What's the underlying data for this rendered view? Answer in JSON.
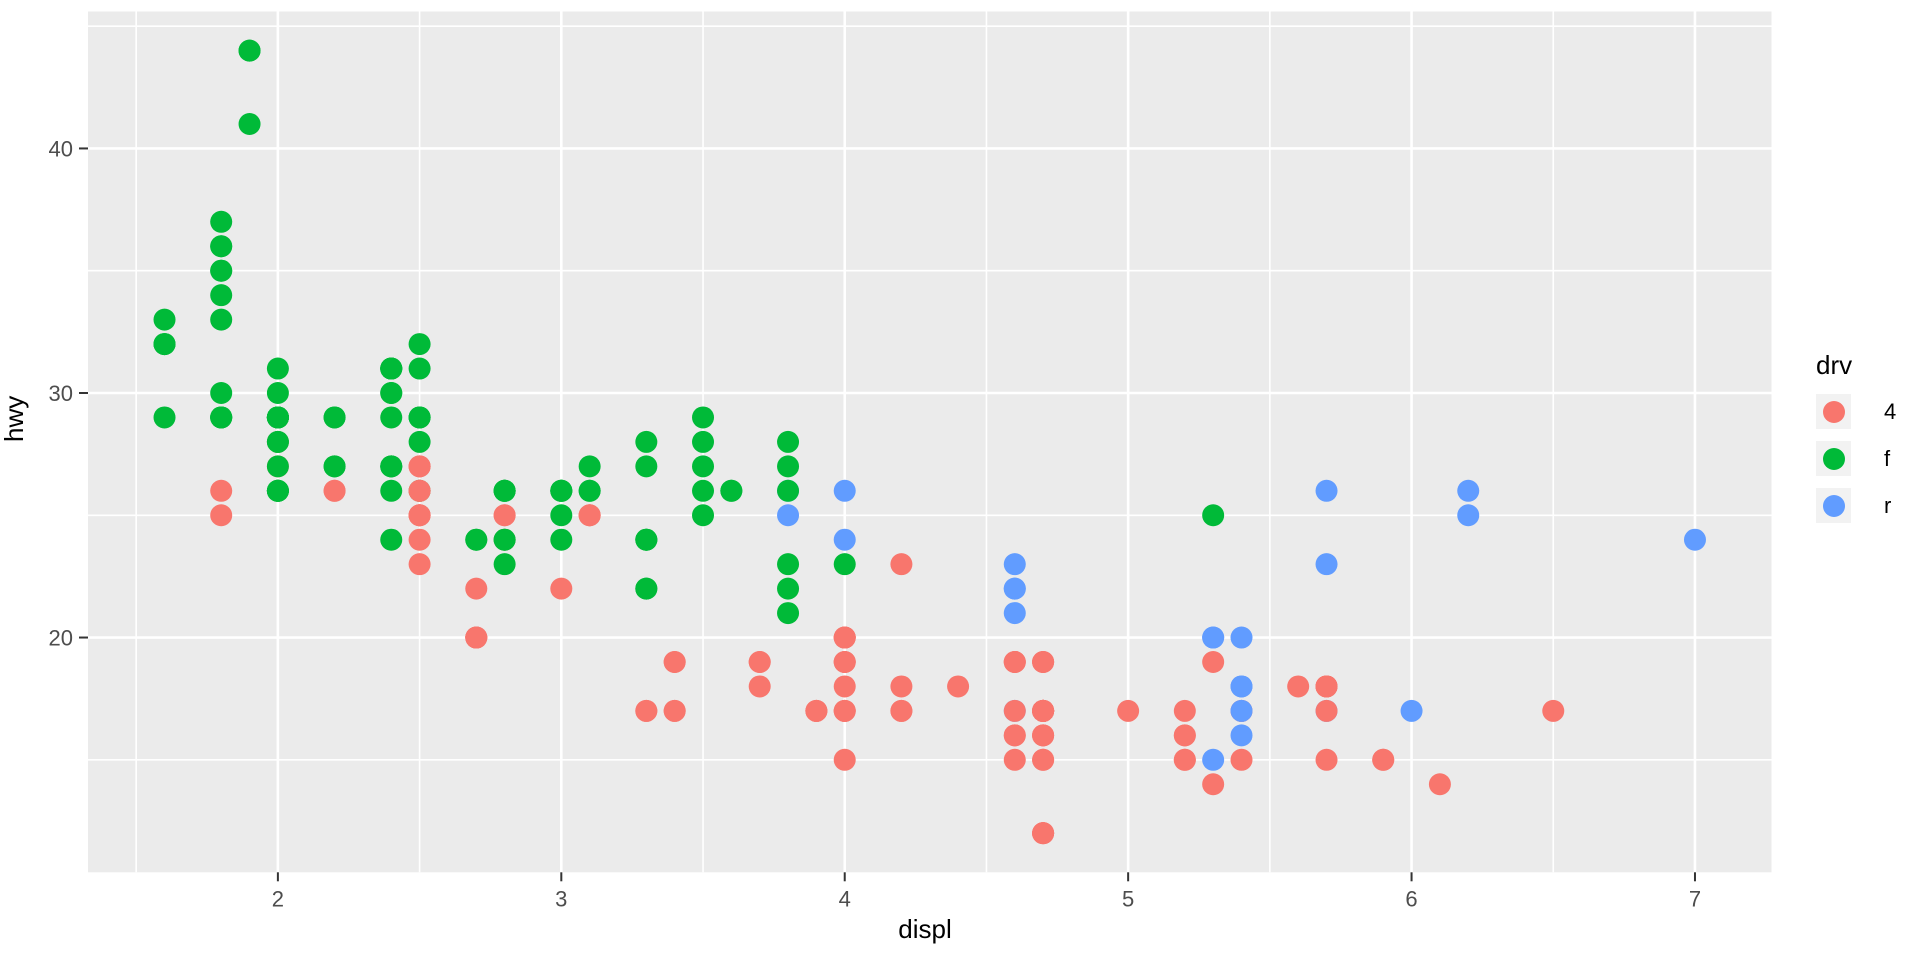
{
  "chart_data": {
    "type": "scatter",
    "title": "",
    "xlabel": "displ",
    "ylabel": "hwy",
    "xlim": [
      1.33,
      7.27
    ],
    "ylim": [
      10.4,
      45.6
    ],
    "x_ticks": [
      2,
      3,
      4,
      5,
      6,
      7
    ],
    "y_ticks": [
      20,
      30,
      40
    ],
    "x_minor_gridlines": [
      1.5,
      2.5,
      3.5,
      4.5,
      5.5,
      6.5
    ],
    "y_minor_gridlines": [
      15,
      25,
      35,
      45
    ],
    "grid": true,
    "panel_bg": "#EBEBEB",
    "gridline_color": "#FFFFFF",
    "tick_mark_color": "#333333",
    "tick_label_color": "#4D4D4D",
    "point_radius": 11,
    "legend": {
      "title": "drv",
      "position": "right",
      "key_bg": "#F2F2F2",
      "entries": [
        {
          "label": "4",
          "color": "#F8766D"
        },
        {
          "label": "f",
          "color": "#00BA38"
        },
        {
          "label": "r",
          "color": "#619CFF"
        }
      ]
    },
    "points": [
      [
        1.8,
        29,
        "f"
      ],
      [
        1.8,
        29,
        "f"
      ],
      [
        2,
        31,
        "f"
      ],
      [
        2,
        30,
        "f"
      ],
      [
        2.8,
        26,
        "f"
      ],
      [
        2.8,
        26,
        "f"
      ],
      [
        3.1,
        27,
        "f"
      ],
      [
        1.8,
        26,
        "4"
      ],
      [
        1.8,
        25,
        "4"
      ],
      [
        2,
        28,
        "4"
      ],
      [
        2,
        27,
        "4"
      ],
      [
        2.8,
        25,
        "4"
      ],
      [
        2.8,
        25,
        "4"
      ],
      [
        3.1,
        25,
        "4"
      ],
      [
        3.1,
        25,
        "4"
      ],
      [
        2.8,
        24,
        "4"
      ],
      [
        3.1,
        25,
        "4"
      ],
      [
        4.2,
        23,
        "4"
      ],
      [
        5.3,
        20,
        "r"
      ],
      [
        5.3,
        15,
        "r"
      ],
      [
        5.3,
        20,
        "r"
      ],
      [
        5.7,
        17,
        "r"
      ],
      [
        6,
        17,
        "r"
      ],
      [
        5.7,
        26,
        "r"
      ],
      [
        5.7,
        23,
        "r"
      ],
      [
        6.2,
        26,
        "r"
      ],
      [
        6.2,
        25,
        "r"
      ],
      [
        7,
        24,
        "r"
      ],
      [
        5.3,
        14,
        "4"
      ],
      [
        5.3,
        19,
        "4"
      ],
      [
        5.7,
        15,
        "4"
      ],
      [
        6.5,
        17,
        "4"
      ],
      [
        2.4,
        27,
        "f"
      ],
      [
        2.4,
        30,
        "f"
      ],
      [
        3.1,
        26,
        "f"
      ],
      [
        3.5,
        29,
        "f"
      ],
      [
        3.6,
        26,
        "f"
      ],
      [
        2.4,
        24,
        "f"
      ],
      [
        3,
        24,
        "f"
      ],
      [
        3.3,
        22,
        "f"
      ],
      [
        3.3,
        22,
        "f"
      ],
      [
        3.3,
        24,
        "f"
      ],
      [
        3.3,
        24,
        "f"
      ],
      [
        3.3,
        24,
        "f"
      ],
      [
        3.8,
        22,
        "f"
      ],
      [
        3.8,
        21,
        "f"
      ],
      [
        3.8,
        23,
        "f"
      ],
      [
        4,
        23,
        "f"
      ],
      [
        3.7,
        19,
        "4"
      ],
      [
        3.7,
        18,
        "4"
      ],
      [
        3.9,
        17,
        "4"
      ],
      [
        3.9,
        17,
        "4"
      ],
      [
        4.7,
        19,
        "4"
      ],
      [
        4.7,
        19,
        "4"
      ],
      [
        4.7,
        12,
        "4"
      ],
      [
        5.2,
        17,
        "4"
      ],
      [
        5.2,
        15,
        "4"
      ],
      [
        3.9,
        17,
        "4"
      ],
      [
        4.7,
        17,
        "4"
      ],
      [
        4.7,
        12,
        "4"
      ],
      [
        4.7,
        17,
        "4"
      ],
      [
        5.2,
        16,
        "4"
      ],
      [
        5.7,
        18,
        "4"
      ],
      [
        5.9,
        15,
        "4"
      ],
      [
        4.7,
        16,
        "4"
      ],
      [
        4.7,
        12,
        "4"
      ],
      [
        4.7,
        17,
        "4"
      ],
      [
        4.7,
        17,
        "4"
      ],
      [
        4.7,
        16,
        "4"
      ],
      [
        4.7,
        17,
        "4"
      ],
      [
        5.2,
        15,
        "4"
      ],
      [
        5.2,
        16,
        "4"
      ],
      [
        5.7,
        17,
        "4"
      ],
      [
        5.9,
        15,
        "4"
      ],
      [
        4.6,
        17,
        "r"
      ],
      [
        5.4,
        17,
        "r"
      ],
      [
        5.4,
        18,
        "r"
      ],
      [
        4,
        17,
        "4"
      ],
      [
        4,
        19,
        "4"
      ],
      [
        4,
        17,
        "4"
      ],
      [
        4,
        19,
        "4"
      ],
      [
        4.6,
        19,
        "4"
      ],
      [
        4.6,
        19,
        "4"
      ],
      [
        4.2,
        17,
        "4"
      ],
      [
        4.2,
        17,
        "4"
      ],
      [
        4.6,
        16,
        "4"
      ],
      [
        4.6,
        16,
        "4"
      ],
      [
        4.6,
        17,
        "4"
      ],
      [
        5.4,
        15,
        "4"
      ],
      [
        5.4,
        17,
        "4"
      ],
      [
        3.8,
        26,
        "r"
      ],
      [
        3.8,
        25,
        "r"
      ],
      [
        4,
        26,
        "r"
      ],
      [
        4,
        24,
        "r"
      ],
      [
        4.6,
        21,
        "r"
      ],
      [
        4.6,
        22,
        "r"
      ],
      [
        4.6,
        23,
        "r"
      ],
      [
        4.6,
        22,
        "r"
      ],
      [
        5.4,
        20,
        "r"
      ],
      [
        1.6,
        33,
        "f"
      ],
      [
        1.6,
        32,
        "f"
      ],
      [
        1.6,
        32,
        "f"
      ],
      [
        1.6,
        29,
        "f"
      ],
      [
        1.6,
        32,
        "f"
      ],
      [
        1.8,
        34,
        "f"
      ],
      [
        1.8,
        36,
        "f"
      ],
      [
        1.8,
        36,
        "f"
      ],
      [
        2,
        29,
        "f"
      ],
      [
        2.4,
        26,
        "f"
      ],
      [
        2.4,
        27,
        "f"
      ],
      [
        2.4,
        30,
        "f"
      ],
      [
        2.4,
        31,
        "f"
      ],
      [
        2.5,
        26,
        "f"
      ],
      [
        2.5,
        26,
        "f"
      ],
      [
        3.3,
        28,
        "f"
      ],
      [
        2,
        26,
        "f"
      ],
      [
        2,
        29,
        "f"
      ],
      [
        2,
        28,
        "f"
      ],
      [
        2,
        27,
        "f"
      ],
      [
        2,
        26,
        "f"
      ],
      [
        2.7,
        24,
        "f"
      ],
      [
        2.7,
        24,
        "f"
      ],
      [
        3,
        22,
        "4"
      ],
      [
        3.7,
        19,
        "4"
      ],
      [
        4,
        20,
        "4"
      ],
      [
        4.7,
        17,
        "4"
      ],
      [
        4.7,
        12,
        "4"
      ],
      [
        4.7,
        19,
        "4"
      ],
      [
        5.7,
        18,
        "4"
      ],
      [
        6.1,
        14,
        "4"
      ],
      [
        4,
        15,
        "4"
      ],
      [
        4.2,
        18,
        "4"
      ],
      [
        4.4,
        18,
        "4"
      ],
      [
        4.6,
        15,
        "4"
      ],
      [
        5.4,
        17,
        "r"
      ],
      [
        5.4,
        16,
        "r"
      ],
      [
        5.4,
        18,
        "r"
      ],
      [
        4,
        17,
        "4"
      ],
      [
        4,
        19,
        "4"
      ],
      [
        4.6,
        19,
        "4"
      ],
      [
        5,
        17,
        "4"
      ],
      [
        2.4,
        29,
        "f"
      ],
      [
        2.4,
        27,
        "f"
      ],
      [
        2.5,
        31,
        "f"
      ],
      [
        2.5,
        32,
        "f"
      ],
      [
        3.5,
        27,
        "f"
      ],
      [
        3.5,
        26,
        "f"
      ],
      [
        3,
        26,
        "f"
      ],
      [
        3,
        25,
        "f"
      ],
      [
        3.5,
        25,
        "f"
      ],
      [
        3.3,
        17,
        "4"
      ],
      [
        3.3,
        17,
        "4"
      ],
      [
        4,
        20,
        "4"
      ],
      [
        5.6,
        18,
        "4"
      ],
      [
        3.1,
        26,
        "f"
      ],
      [
        3.8,
        26,
        "f"
      ],
      [
        3.8,
        27,
        "f"
      ],
      [
        3.8,
        28,
        "f"
      ],
      [
        5.3,
        25,
        "f"
      ],
      [
        2.5,
        25,
        "4"
      ],
      [
        2.5,
        24,
        "4"
      ],
      [
        2.5,
        27,
        "4"
      ],
      [
        2.5,
        25,
        "4"
      ],
      [
        2.5,
        26,
        "4"
      ],
      [
        2.5,
        23,
        "4"
      ],
      [
        2.2,
        26,
        "4"
      ],
      [
        2.2,
        26,
        "4"
      ],
      [
        2.5,
        26,
        "4"
      ],
      [
        2.5,
        26,
        "4"
      ],
      [
        2.5,
        25,
        "4"
      ],
      [
        2.5,
        27,
        "4"
      ],
      [
        2.5,
        25,
        "4"
      ],
      [
        2.5,
        27,
        "4"
      ],
      [
        2.7,
        20,
        "4"
      ],
      [
        2.7,
        20,
        "4"
      ],
      [
        3.4,
        19,
        "4"
      ],
      [
        3.4,
        17,
        "4"
      ],
      [
        4,
        20,
        "4"
      ],
      [
        4.7,
        17,
        "4"
      ],
      [
        2.2,
        29,
        "f"
      ],
      [
        2.2,
        27,
        "f"
      ],
      [
        2.4,
        31,
        "f"
      ],
      [
        2.4,
        31,
        "f"
      ],
      [
        3,
        26,
        "f"
      ],
      [
        3,
        26,
        "f"
      ],
      [
        3.5,
        28,
        "f"
      ],
      [
        2.2,
        27,
        "f"
      ],
      [
        2.2,
        29,
        "f"
      ],
      [
        2.4,
        31,
        "f"
      ],
      [
        2.4,
        31,
        "f"
      ],
      [
        3,
        26,
        "f"
      ],
      [
        3.3,
        27,
        "f"
      ],
      [
        1.8,
        30,
        "f"
      ],
      [
        1.8,
        33,
        "f"
      ],
      [
        1.8,
        35,
        "f"
      ],
      [
        1.8,
        37,
        "f"
      ],
      [
        1.8,
        35,
        "f"
      ],
      [
        4.7,
        15,
        "4"
      ],
      [
        5.7,
        18,
        "4"
      ],
      [
        4.7,
        15,
        "4"
      ],
      [
        4.7,
        17,
        "4"
      ],
      [
        4.7,
        17,
        "4"
      ],
      [
        5.7,
        18,
        "4"
      ],
      [
        2.7,
        20,
        "4"
      ],
      [
        2.7,
        20,
        "4"
      ],
      [
        2.7,
        22,
        "4"
      ],
      [
        3.4,
        17,
        "4"
      ],
      [
        3.4,
        19,
        "4"
      ],
      [
        4,
        18,
        "4"
      ],
      [
        4,
        20,
        "4"
      ],
      [
        4.7,
        17,
        "4"
      ],
      [
        4.7,
        16,
        "4"
      ],
      [
        4.7,
        17,
        "4"
      ],
      [
        4.7,
        17,
        "4"
      ],
      [
        5.7,
        18,
        "4"
      ],
      [
        2,
        29,
        "f"
      ],
      [
        2,
        26,
        "f"
      ],
      [
        2,
        29,
        "f"
      ],
      [
        2,
        29,
        "f"
      ],
      [
        2.8,
        24,
        "f"
      ],
      [
        1.9,
        44,
        "f"
      ],
      [
        2,
        29,
        "f"
      ],
      [
        2,
        26,
        "f"
      ],
      [
        2,
        29,
        "f"
      ],
      [
        2,
        29,
        "f"
      ],
      [
        2.5,
        29,
        "f"
      ],
      [
        2.5,
        29,
        "f"
      ],
      [
        2.8,
        24,
        "f"
      ],
      [
        2.8,
        23,
        "f"
      ],
      [
        1.9,
        44,
        "f"
      ],
      [
        1.9,
        41,
        "f"
      ],
      [
        2,
        29,
        "f"
      ],
      [
        2,
        26,
        "f"
      ],
      [
        2.5,
        28,
        "f"
      ],
      [
        2.5,
        29,
        "f"
      ],
      [
        1.8,
        29,
        "f"
      ],
      [
        1.8,
        29,
        "f"
      ],
      [
        2,
        28,
        "f"
      ],
      [
        2,
        29,
        "f"
      ],
      [
        2.8,
        26,
        "f"
      ],
      [
        2.8,
        26,
        "f"
      ],
      [
        3.6,
        26,
        "f"
      ]
    ]
  }
}
